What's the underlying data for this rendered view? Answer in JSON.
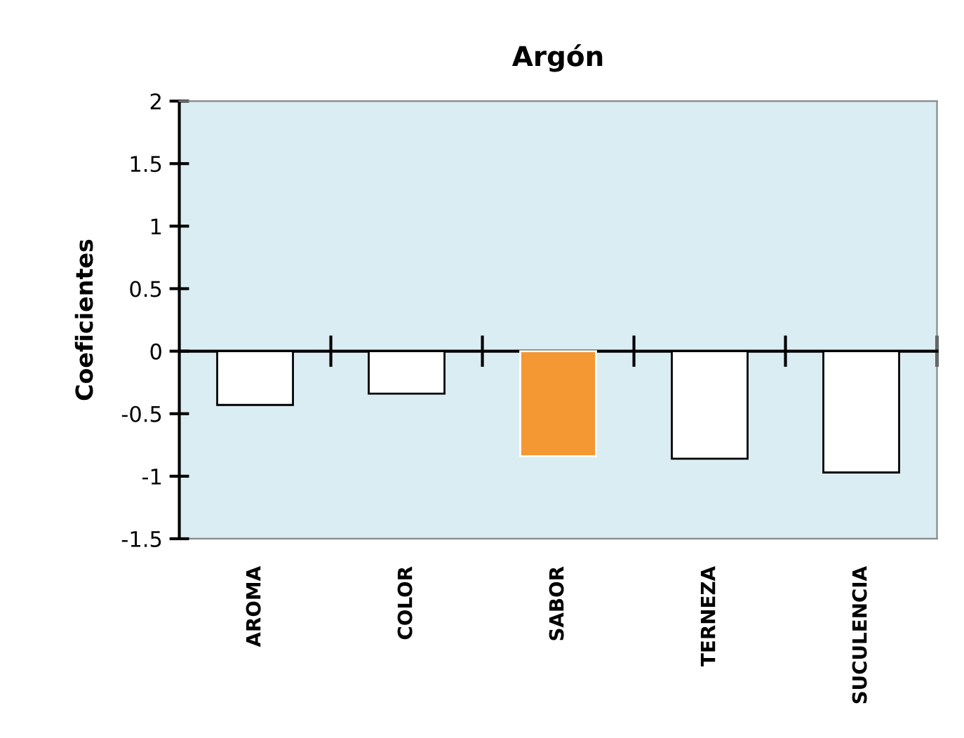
{
  "chart_data": {
    "type": "bar",
    "title": "Argón",
    "ylabel": "Coeficientes",
    "categories": [
      "AROMA",
      "COLOR",
      "SABOR",
      "TERNEZA",
      "SUCULENCIA"
    ],
    "values": [
      -0.43,
      -0.34,
      -0.84,
      -0.86,
      -0.97
    ],
    "colors": [
      "#ffffff",
      "#ffffff",
      "#f39833",
      "#ffffff",
      "#ffffff"
    ],
    "ylim": [
      -1.5,
      2
    ],
    "yticks": [
      -1.5,
      -1,
      -0.5,
      0,
      0.5,
      1,
      1.5,
      2
    ]
  }
}
